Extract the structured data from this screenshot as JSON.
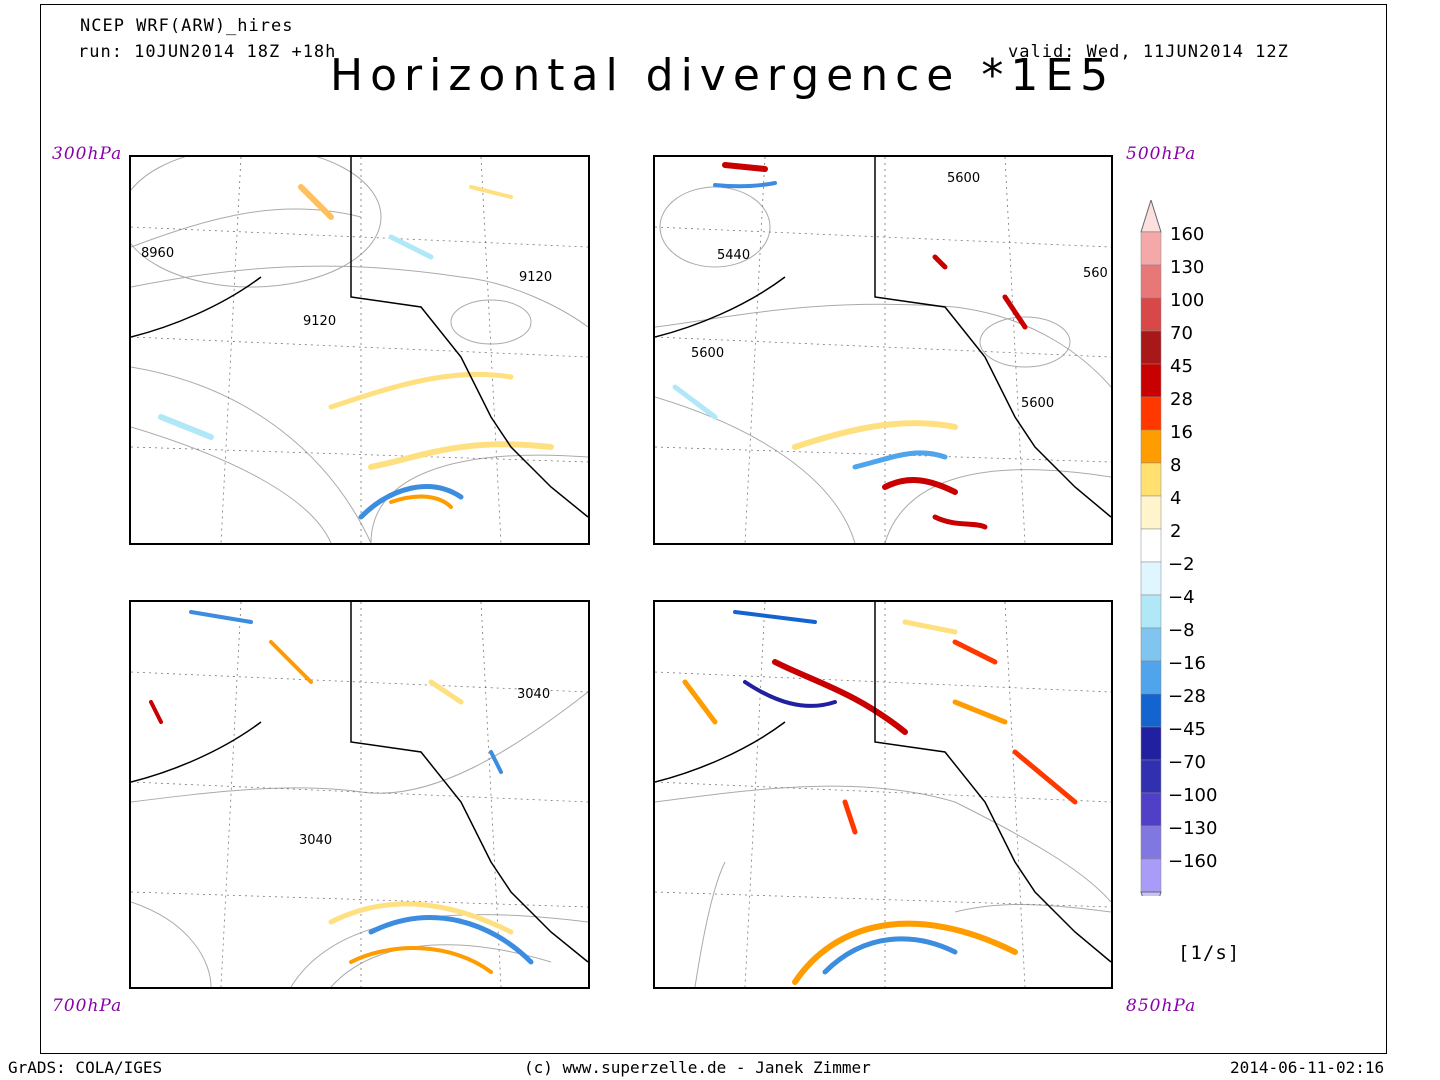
{
  "header": {
    "model": "NCEP WRF(ARW)_hires",
    "run": "run: 10JUN2014 18Z +18h",
    "valid": "valid: Wed, 11JUN2014 12Z",
    "title": "Horizontal divergence *1E5"
  },
  "panels": [
    {
      "level": "300hPa",
      "contours": [
        "8960",
        "9120",
        "9120"
      ]
    },
    {
      "level": "500hPa",
      "contours": [
        "5600",
        "5440",
        "560",
        "5600",
        "5600"
      ]
    },
    {
      "level": "700hPa",
      "contours": [
        "3040",
        "3040"
      ]
    },
    {
      "level": "850hPa",
      "contours": []
    }
  ],
  "colorbar": {
    "units": "[1/s]",
    "labels": [
      "160",
      "130",
      "100",
      "70",
      "45",
      "28",
      "16",
      "8",
      "4",
      "2",
      "-2",
      "-4",
      "-8",
      "-16",
      "-28",
      "-45",
      "-70",
      "-100",
      "-130",
      "-160"
    ],
    "colors": [
      "#f4a8a8",
      "#e87878",
      "#d84848",
      "#a81818",
      "#c80000",
      "#ff3800",
      "#ff9c00",
      "#ffe070",
      "#fff4cc",
      "#ffffff",
      "#e0f6ff",
      "#b0e8f8",
      "#80c4f0",
      "#50a4ec",
      "#1464d0",
      "#2020a0",
      "#3030b0",
      "#5040c8",
      "#8078e0",
      "#a89cf8"
    ],
    "top_tip_color": "#fce0e0",
    "bottom_tip_color": "#c8c0fc"
  },
  "footer": {
    "left": "GrADS: COLA/IGES",
    "center": "(c) www.superzelle.de - Janek Zimmer",
    "right": "2014-06-11-02:16"
  }
}
